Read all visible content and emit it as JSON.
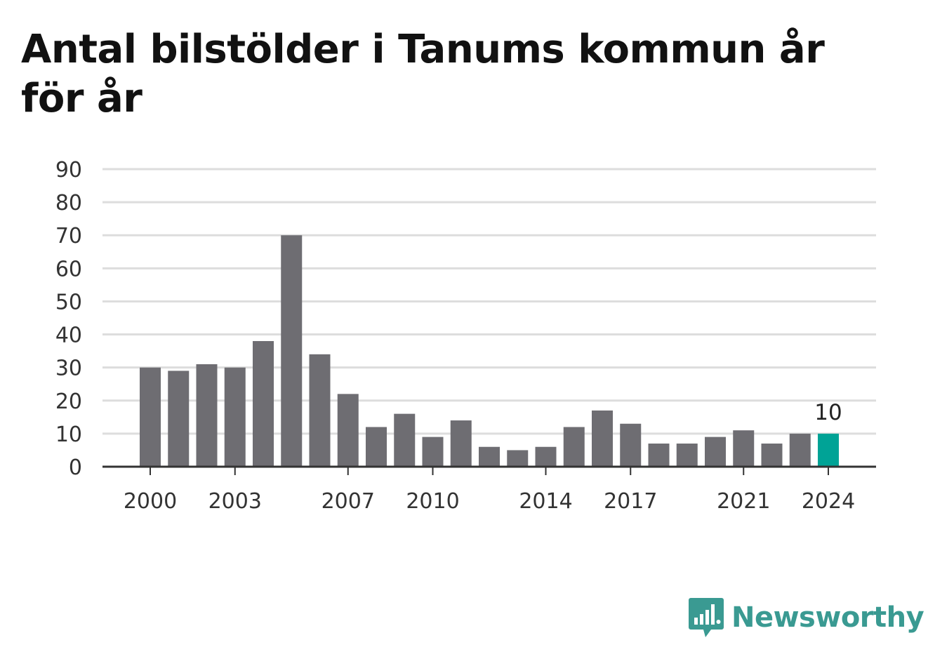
{
  "chart_data": {
    "type": "bar",
    "title": "Antal bilstölder i Tanums kommun år för år",
    "xlabel": "",
    "ylabel": "",
    "categories": [
      2000,
      2001,
      2002,
      2003,
      2004,
      2005,
      2006,
      2007,
      2008,
      2009,
      2010,
      2011,
      2012,
      2013,
      2014,
      2015,
      2016,
      2017,
      2018,
      2019,
      2020,
      2021,
      2022,
      2023,
      2024
    ],
    "values": [
      30,
      29,
      31,
      30,
      38,
      70,
      34,
      22,
      12,
      16,
      9,
      14,
      6,
      5,
      6,
      12,
      17,
      13,
      7,
      7,
      9,
      11,
      7,
      10,
      10
    ],
    "x_tick_labels": [
      "2000",
      "2003",
      "2007",
      "2010",
      "2014",
      "2017",
      "2021",
      "2024"
    ],
    "y_ticks": [
      0,
      10,
      20,
      30,
      40,
      50,
      60,
      70,
      80,
      90
    ],
    "ylim": [
      0,
      90
    ],
    "grid": true,
    "highlight_index": 24,
    "highlight_label": "10",
    "colors": {
      "bar": "#6e6d72",
      "highlight": "#00a396",
      "grid": "#dddddd",
      "axis": "#333333"
    }
  },
  "brand": {
    "name": "Newsworthy",
    "icon": "chart-speech-bubble-icon",
    "color": "#3a9a92"
  }
}
